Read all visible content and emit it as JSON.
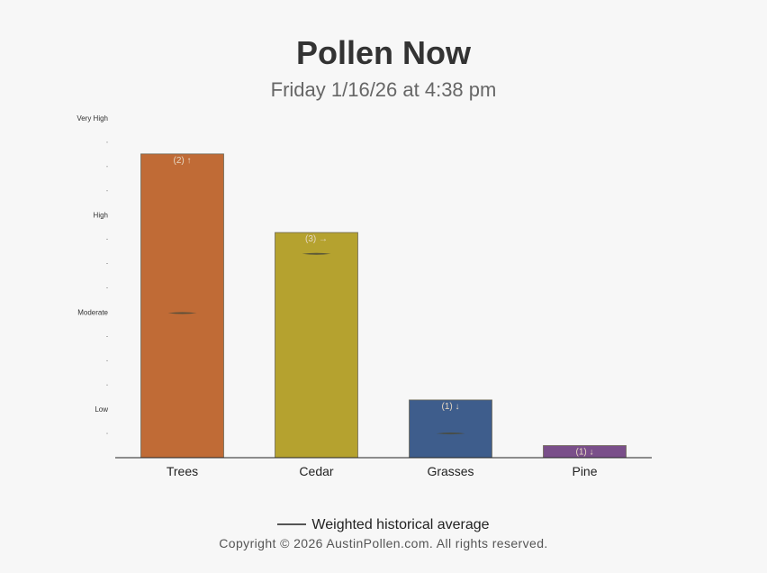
{
  "header": {
    "title": "Pollen Now",
    "subtitle": "Friday 1/16/26 at 4:38 pm"
  },
  "chart_data": {
    "type": "bar",
    "title": "Pollen Now",
    "subtitle": "Friday 1/16/26 at 4:38 pm",
    "y_levels": [
      "Low",
      "Moderate",
      "High",
      "Very High"
    ],
    "y_level_values": [
      1,
      3,
      5,
      7
    ],
    "ylim": [
      0,
      7
    ],
    "categories": [
      "Trees",
      "Cedar",
      "Grasses",
      "Pine"
    ],
    "values": [
      6.26,
      4.64,
      1.19,
      0.25
    ],
    "bar_labels": [
      "(2) ↑",
      "(3) →",
      "(1) ↓",
      "(1) ↓"
    ],
    "historical_average": [
      2.98,
      4.2,
      0.5,
      null
    ],
    "colors": [
      "#c06b36",
      "#b5a22f",
      "#3e5d8c",
      "#7a4f8a"
    ],
    "legend": "Weighted historical average",
    "grid": false
  },
  "legend": {
    "label": "Weighted historical average",
    "line_color": "#555555"
  },
  "footer": {
    "copyright": "Copyright © 2026 AustinPollen.com.  All rights reserved."
  }
}
